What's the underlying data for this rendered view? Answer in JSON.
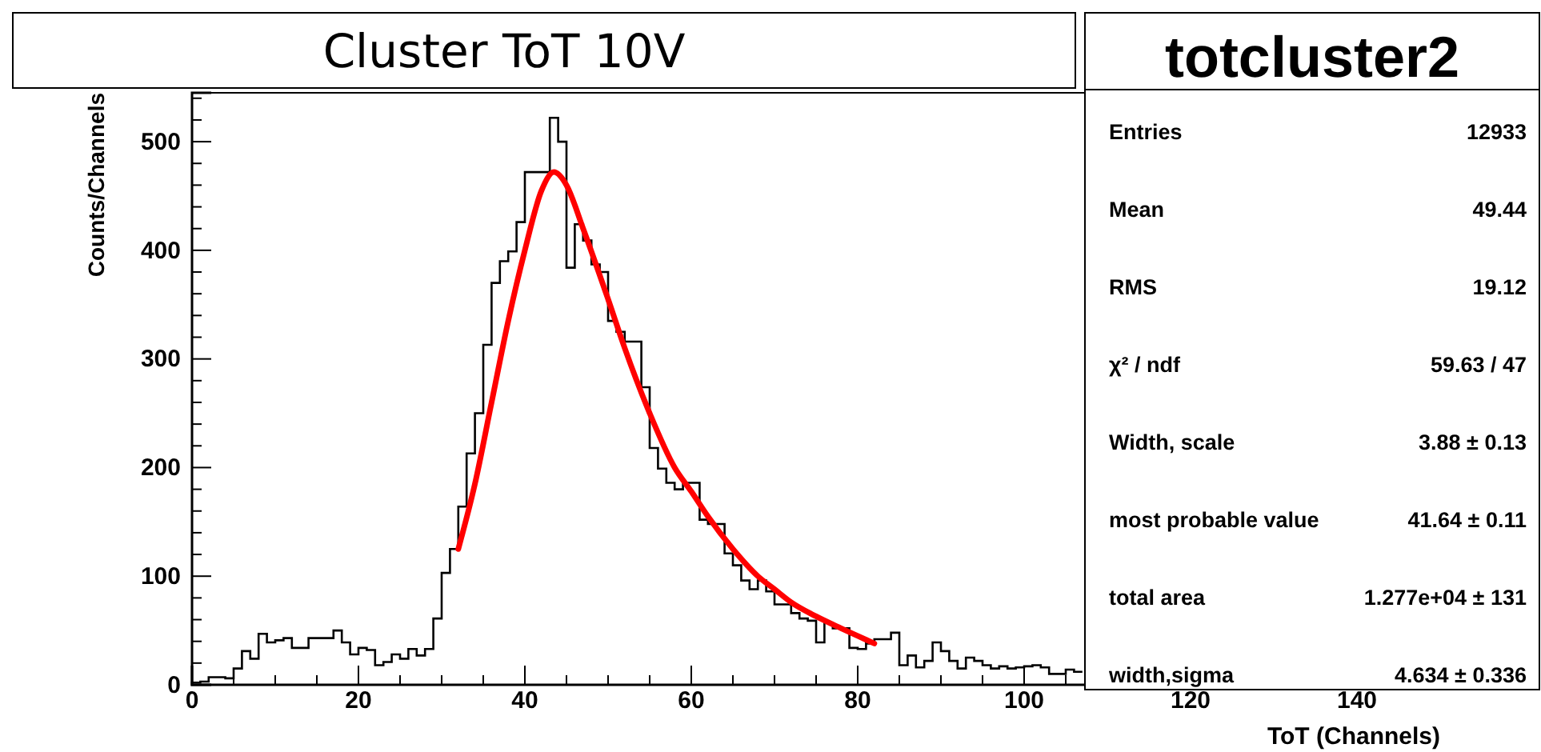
{
  "chart_data": {
    "type": "histogram",
    "title": "Cluster ToT 10V",
    "xlabel": "ToT (Channels)",
    "ylabel": "Counts/Channels",
    "bins": [
      0,
      1,
      2,
      3,
      4,
      5,
      6,
      7,
      8,
      9,
      10,
      11,
      12,
      13,
      14,
      15,
      16,
      17,
      18,
      19,
      20,
      21,
      22,
      23,
      24,
      25,
      26,
      27,
      28,
      29,
      30,
      31,
      32,
      33,
      34,
      35,
      36,
      37,
      38,
      39,
      40,
      41,
      42,
      43,
      44,
      45,
      46,
      47,
      48,
      49,
      50,
      51,
      52,
      53,
      54,
      55,
      56,
      57,
      58,
      59,
      60,
      61,
      62,
      63,
      64,
      65,
      66,
      67,
      68,
      69,
      70,
      71,
      72,
      73,
      74,
      75,
      76,
      77,
      78,
      79,
      80,
      81,
      82,
      83,
      84,
      85,
      86,
      87,
      88,
      89,
      90,
      91,
      92,
      93,
      94,
      95,
      96,
      97,
      98,
      99,
      100,
      101,
      102,
      103,
      104,
      105,
      106,
      107
    ],
    "values": [
      2,
      3,
      7,
      7,
      6,
      15,
      31,
      24,
      47,
      39,
      41,
      43,
      34,
      34,
      43,
      43,
      43,
      50,
      39,
      28,
      34,
      32,
      18,
      21,
      28,
      24,
      33,
      27,
      33,
      61,
      103,
      125,
      164,
      213,
      250,
      313,
      370,
      390,
      399,
      426,
      472,
      472,
      472,
      522,
      500,
      384,
      424,
      409,
      387,
      380,
      335,
      325,
      316,
      316,
      274,
      218,
      199,
      186,
      180,
      186,
      186,
      152,
      148,
      148,
      121,
      110,
      96,
      88,
      96,
      86,
      74,
      74,
      66,
      61,
      59,
      39,
      57,
      52,
      52,
      34,
      33,
      38,
      42,
      42,
      48,
      18,
      27,
      16,
      22,
      39,
      31,
      22,
      15,
      25,
      22,
      18,
      15,
      17,
      15,
      16,
      17,
      18,
      16,
      10,
      10,
      14,
      12
    ],
    "color": "#000000",
    "series": [
      {
        "type": "line",
        "color": "#ff0000",
        "x": [
          32,
          34,
          36,
          38,
          40,
          42,
          43.5,
          45,
          47,
          50,
          52,
          55,
          58,
          60,
          62,
          65,
          68,
          70,
          72,
          75,
          78,
          80,
          82
        ],
        "values": [
          125,
          185,
          260,
          335,
          400,
          455,
          472,
          460,
          420,
          355,
          310,
          250,
          200,
          178,
          155,
          125,
          100,
          88,
          76,
          63,
          52,
          45,
          38
        ]
      }
    ],
    "xlim": [
      0,
      150
    ],
    "xticks": [
      0,
      {
        "value": 5,
        "label": null
      },
      {
        "value": 10,
        "label": null
      },
      {
        "value": 15,
        "label": null
      },
      20,
      {
        "value": 25,
        "label": null
      },
      {
        "value": 30,
        "label": null
      },
      {
        "value": 35,
        "label": null
      },
      40,
      {
        "value": 45,
        "label": null
      },
      {
        "value": 50,
        "label": null
      },
      {
        "value": 55,
        "label": null
      },
      60,
      {
        "value": 65,
        "label": null
      },
      {
        "value": 70,
        "label": null
      },
      {
        "value": 75,
        "label": null
      },
      80,
      {
        "value": 85,
        "label": null
      },
      {
        "value": 90,
        "label": null
      },
      {
        "value": 95,
        "label": null
      },
      100,
      {
        "value": 105,
        "label": null
      },
      {
        "value": 110,
        "label": null
      },
      {
        "value": 115,
        "label": null
      },
      120,
      {
        "value": 125,
        "label": null
      },
      {
        "value": 130,
        "label": null
      },
      {
        "value": 135,
        "label": null
      },
      140,
      {
        "value": 145,
        "label": null
      }
    ],
    "ylim": [
      0,
      545
    ],
    "yticks": [
      0,
      {
        "value": 20,
        "label": null
      },
      {
        "value": 40,
        "label": null
      },
      {
        "value": 60,
        "label": null
      },
      {
        "value": 80,
        "label": null
      },
      100,
      {
        "value": 120,
        "label": null
      },
      {
        "value": 140,
        "label": null
      },
      {
        "value": 160,
        "label": null
      },
      {
        "value": 180,
        "label": null
      },
      200,
      {
        "value": 220,
        "label": null
      },
      {
        "value": 240,
        "label": null
      },
      {
        "value": 260,
        "label": null
      },
      {
        "value": 280,
        "label": null
      },
      300,
      {
        "value": 320,
        "label": null
      },
      {
        "value": 340,
        "label": null
      },
      {
        "value": 360,
        "label": null
      },
      {
        "value": 380,
        "label": null
      },
      400,
      {
        "value": 420,
        "label": null
      },
      {
        "value": 440,
        "label": null
      },
      {
        "value": 460,
        "label": null
      },
      {
        "value": 480,
        "label": null
      },
      500,
      {
        "value": 520,
        "label": null
      },
      {
        "value": 540,
        "label": null
      }
    ],
    "grid": false,
    "annotations": [
      "totcluster2",
      "Entries",
      "12933",
      "Mean",
      "49.44",
      "RMS",
      "19.12",
      "χ² / ndf",
      "59.63 / 47",
      "Width, scale",
      "3.88 ± 0.13",
      "most probable value",
      "41.64 ± 0.11",
      "total area",
      "1.277e+04 ± 131",
      "width,sigma",
      "4.634 ± 0.336"
    ]
  }
}
